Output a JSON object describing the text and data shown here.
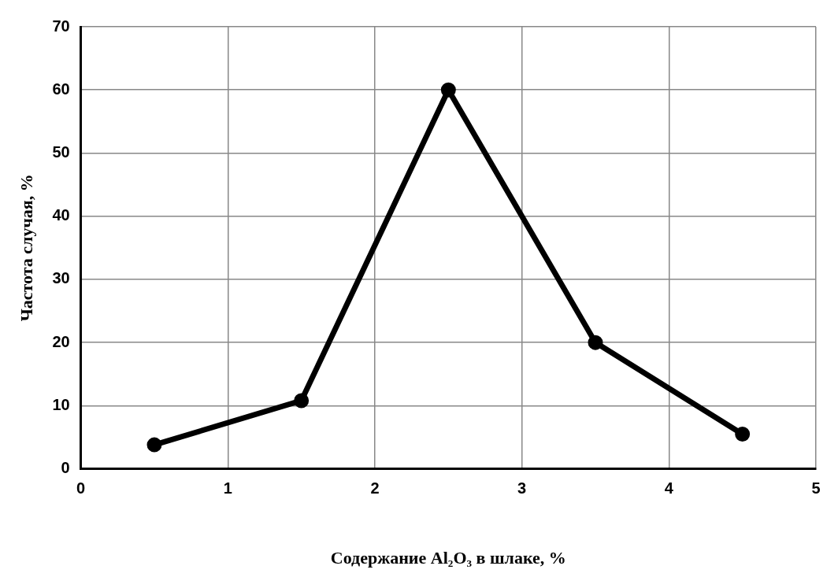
{
  "chart_data": {
    "type": "line",
    "xlabel": "Содержание Al₂O₃ в шлаке, %",
    "ylabel": "Частота случая, %",
    "x": [
      0.5,
      1.5,
      2.5,
      3.5,
      4.5
    ],
    "series": [
      {
        "color": "#000000",
        "values": [
          3.8,
          10.8,
          60,
          20,
          5.5
        ]
      }
    ],
    "xlim": [
      0,
      5
    ],
    "xticks": [
      0,
      1,
      2,
      3,
      4,
      5
    ],
    "ylim": [
      0,
      70
    ],
    "yticks": [
      0,
      10,
      20,
      30,
      40,
      50,
      60,
      70
    ],
    "grid": true,
    "legend": false,
    "marker": "circle",
    "line_style": "solid"
  }
}
